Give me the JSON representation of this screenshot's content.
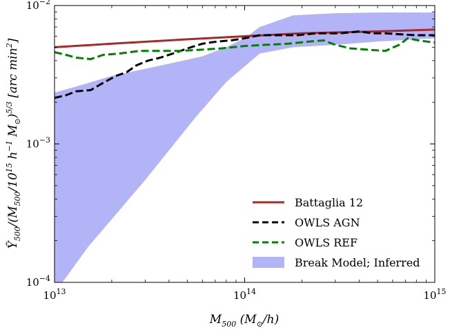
{
  "chart_data": {
    "type": "line",
    "title": "",
    "xlabel": "M500 (M⊙/h)",
    "ylabel": "Ỹ500/(M500/10^15 h⁻¹ M⊙)^5/3 [arc min²]",
    "xscale": "log",
    "yscale": "log",
    "xlim": [
      10000000000000.0,
      1000000000000000.0
    ],
    "ylim": [
      0.0001,
      0.01
    ],
    "grid": false,
    "legend_position": "lower-right",
    "x_ticks": [
      {
        "value": 10000000000000.0,
        "base": "10",
        "exp": "13"
      },
      {
        "value": 100000000000000.0,
        "base": "10",
        "exp": "14"
      },
      {
        "value": 1000000000000000.0,
        "base": "10",
        "exp": "15"
      }
    ],
    "y_ticks": [
      {
        "value": 0.0001,
        "base": "10",
        "exp": "−4"
      },
      {
        "value": 0.001,
        "base": "10",
        "exp": "−3"
      },
      {
        "value": 0.01,
        "base": "10",
        "exp": "−2"
      }
    ],
    "band": {
      "name": "Break Model; Inferred",
      "color": "#b3b3f7",
      "upper": [
        [
          10000000000000.0,
          0.00235
        ],
        [
          13000000000000.0,
          0.0026
        ],
        [
          20000000000000.0,
          0.0031
        ],
        [
          40000000000000.0,
          0.0038
        ],
        [
          60000000000000.0,
          0.0043
        ],
        [
          80000000000000.0,
          0.005
        ],
        [
          100000000000000.0,
          0.0058
        ],
        [
          120000000000000.0,
          0.007
        ],
        [
          180000000000000.0,
          0.0085
        ],
        [
          300000000000000.0,
          0.0088
        ],
        [
          500000000000000.0,
          0.0089
        ],
        [
          1000000000000000.0,
          0.0089
        ]
      ],
      "lower": [
        [
          1000000000000000.0,
          0.0058
        ],
        [
          500000000000000.0,
          0.0055
        ],
        [
          300000000000000.0,
          0.0052
        ],
        [
          180000000000000.0,
          0.005
        ],
        [
          120000000000000.0,
          0.0045
        ],
        [
          80000000000000.0,
          0.0028
        ],
        [
          55000000000000.0,
          0.00155
        ],
        [
          30000000000000.0,
          0.00055
        ],
        [
          15000000000000.0,
          0.00018
        ],
        [
          11000000000000.0,
          0.0001
        ],
        [
          10000000000000.0,
          0.0001
        ]
      ]
    },
    "series": [
      {
        "name": "Battaglia 12",
        "color": "#a52a2a",
        "dash": "solid",
        "points": [
          [
            10000000000000.0,
            0.005
          ],
          [
            20000000000000.0,
            0.0053
          ],
          [
            50000000000000.0,
            0.0057
          ],
          [
            100000000000000.0,
            0.006
          ],
          [
            200000000000000.0,
            0.0063
          ],
          [
            500000000000000.0,
            0.0065
          ],
          [
            1000000000000000.0,
            0.0067
          ]
        ]
      },
      {
        "name": "OWLS AGN",
        "color": "#000000",
        "dash": "dashed",
        "points": [
          [
            10000000000000.0,
            0.00215
          ],
          [
            11500000000000.0,
            0.00225
          ],
          [
            13000000000000.0,
            0.0024
          ],
          [
            15500000000000.0,
            0.00245
          ],
          [
            17500000000000.0,
            0.0027
          ],
          [
            21000000000000.0,
            0.0031
          ],
          [
            24000000000000.0,
            0.0033
          ],
          [
            27000000000000.0,
            0.0037
          ],
          [
            31000000000000.0,
            0.004
          ],
          [
            36000000000000.0,
            0.0042
          ],
          [
            42000000000000.0,
            0.0045
          ],
          [
            50000000000000.0,
            0.0049
          ],
          [
            60000000000000.0,
            0.0053
          ],
          [
            72000000000000.0,
            0.0055
          ],
          [
            85000000000000.0,
            0.0056
          ],
          [
            100000000000000.0,
            0.0058
          ],
          [
            120000000000000.0,
            0.0061
          ],
          [
            150000000000000.0,
            0.0061
          ],
          [
            190000000000000.0,
            0.0061
          ],
          [
            240000000000000.0,
            0.0063
          ],
          [
            320000000000000.0,
            0.0063
          ],
          [
            400000000000000.0,
            0.0065
          ],
          [
            470000000000000.0,
            0.0063
          ],
          [
            550000000000000.0,
            0.0063
          ],
          [
            650000000000000.0,
            0.0062
          ],
          [
            800000000000000.0,
            0.0061
          ],
          [
            1000000000000000.0,
            0.0061
          ]
        ]
      },
      {
        "name": "OWLS REF",
        "color": "#007f00",
        "dash": "dashed",
        "points": [
          [
            10000000000000.0,
            0.0046
          ],
          [
            11500000000000.0,
            0.0044
          ],
          [
            13000000000000.0,
            0.0042
          ],
          [
            15500000000000.0,
            0.0041
          ],
          [
            18000000000000.0,
            0.0044
          ],
          [
            22000000000000.0,
            0.0045
          ],
          [
            28000000000000.0,
            0.0047
          ],
          [
            36000000000000.0,
            0.0047
          ],
          [
            46000000000000.0,
            0.0047
          ],
          [
            60000000000000.0,
            0.0048
          ],
          [
            75000000000000.0,
            0.0049
          ],
          [
            100000000000000.0,
            0.0051
          ],
          [
            130000000000000.0,
            0.0052
          ],
          [
            170000000000000.0,
            0.0053
          ],
          [
            220000000000000.0,
            0.0055
          ],
          [
            260000000000000.0,
            0.0056
          ],
          [
            300000000000000.0,
            0.0052
          ],
          [
            360000000000000.0,
            0.0049
          ],
          [
            440000000000000.0,
            0.0048
          ],
          [
            550000000000000.0,
            0.0047
          ],
          [
            650000000000000.0,
            0.0052
          ],
          [
            720000000000000.0,
            0.0058
          ],
          [
            820000000000000.0,
            0.0056
          ],
          [
            1000000000000000.0,
            0.0054
          ]
        ]
      }
    ]
  }
}
